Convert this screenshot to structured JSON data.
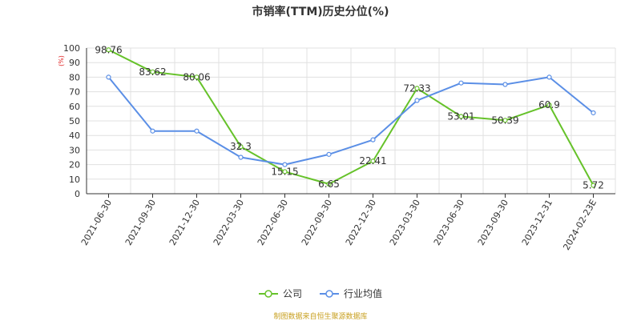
{
  "title": "市销率(TTM)历史分位(%)",
  "source": "制图数据来自恒生聚源数据库",
  "chart_data": {
    "type": "line",
    "title": "市销率(TTM)历史分位(%)",
    "ylabel": "(%)",
    "ylim": [
      0,
      100
    ],
    "yticks": [
      0,
      10,
      20,
      30,
      40,
      50,
      60,
      70,
      80,
      90,
      100
    ],
    "grid": true,
    "legend_position": "bottom",
    "categories": [
      "2021-06-30",
      "2021-09-30",
      "2021-12-30",
      "2022-03-30",
      "2022-06-30",
      "2022-09-30",
      "2022-12-30",
      "2023-03-30",
      "2023-06-30",
      "2023-09-30",
      "2023-12-31",
      "2024-02-23E"
    ],
    "series": [
      {
        "name": "公司",
        "color": "#66c22a",
        "values": [
          98.76,
          83.62,
          80.06,
          32.3,
          15.15,
          6.65,
          22.41,
          72.33,
          53.01,
          50.39,
          60.9,
          5.72
        ],
        "labels": [
          "98.76",
          "83.62",
          "80.06",
          "32.3",
          "15.15",
          "6.65",
          "22.41",
          "72.33",
          "53.01",
          "50.39",
          "60.9",
          "5.72"
        ]
      },
      {
        "name": "行业均值",
        "color": "#5b8fe6",
        "values": [
          80,
          43,
          43,
          25,
          20,
          27,
          37,
          64,
          76,
          75,
          80,
          55.5
        ]
      }
    ]
  }
}
